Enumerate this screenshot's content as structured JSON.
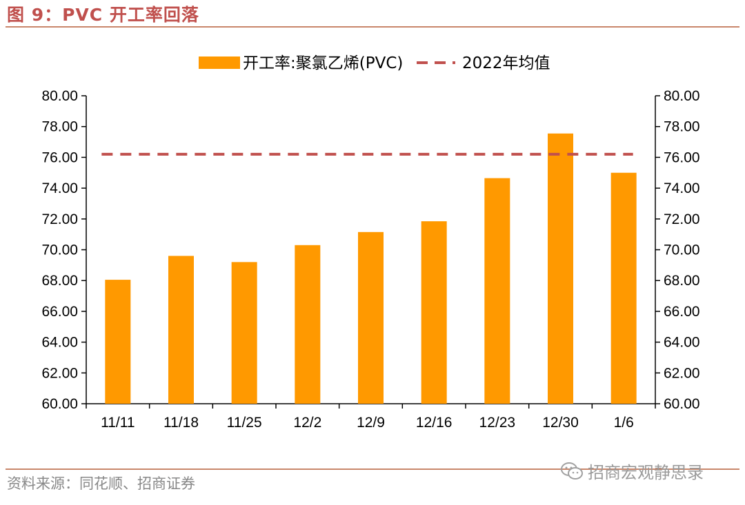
{
  "figure_title": "图 9：PVC 开工率回落",
  "source": "资料来源：同花顺、招商证券",
  "watermark": {
    "text": "招商宏观静思录",
    "icon": "wechat-icon"
  },
  "colors": {
    "title": "#c0504d",
    "bar": "#ff9900",
    "avg_line": "#c0504d",
    "rule": "#c8866a"
  },
  "chart_data": {
    "type": "bar",
    "categories": [
      "11/11",
      "11/18",
      "11/25",
      "12/2",
      "12/9",
      "12/16",
      "12/23",
      "12/30",
      "1/6"
    ],
    "series": [
      {
        "name": "开工率:聚氯乙烯(PVC)",
        "type": "bar",
        "values": [
          68.05,
          69.6,
          69.2,
          70.3,
          71.15,
          71.85,
          74.65,
          77.55,
          75.0
        ]
      },
      {
        "name": "2022年均值",
        "type": "line",
        "style": "dashed",
        "values": [
          76.2,
          76.2,
          76.2,
          76.2,
          76.2,
          76.2,
          76.2,
          76.2,
          76.2
        ]
      }
    ],
    "ylim": [
      60,
      80
    ],
    "yticks": [
      "60.00",
      "62.00",
      "64.00",
      "66.00",
      "68.00",
      "70.00",
      "72.00",
      "74.00",
      "76.00",
      "78.00",
      "80.00"
    ],
    "y2ticks": [
      "60.00",
      "62.00",
      "64.00",
      "66.00",
      "68.00",
      "70.00",
      "72.00",
      "74.00",
      "76.00",
      "78.00",
      "80.00"
    ],
    "legend_position": "top-center",
    "grid": false
  }
}
